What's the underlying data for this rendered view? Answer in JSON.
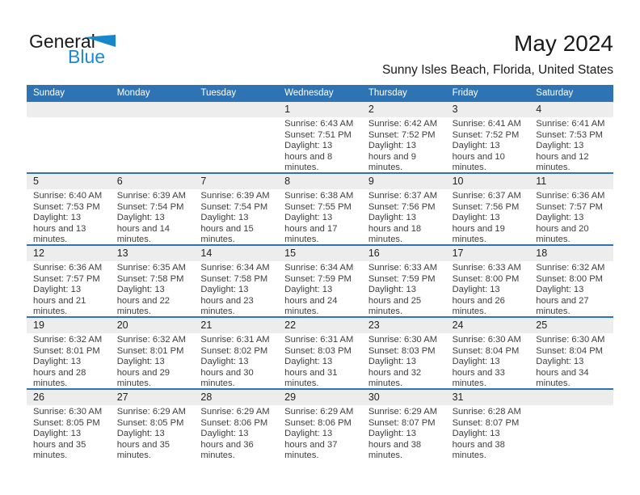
{
  "logo": {
    "text_black": "General",
    "text_blue": "Blue",
    "triangle_icon": "blue-triangle"
  },
  "title": "May 2024",
  "subtitle": "Sunny Isles Beach, Florida, United States",
  "colors": {
    "header_bg": "#2E74B5",
    "divider": "#2E74B5",
    "band": "#EDEDED",
    "logo_blue": "#1E88D2",
    "text_dark": "#1A1A1A",
    "cell_text": "#3E3E3E"
  },
  "calendar": {
    "weekdays": [
      "Sunday",
      "Monday",
      "Tuesday",
      "Wednesday",
      "Thursday",
      "Friday",
      "Saturday"
    ],
    "weeks": [
      [
        null,
        null,
        null,
        {
          "day": "1",
          "sunrise": "Sunrise: 6:43 AM",
          "sunset": "Sunset: 7:51 PM",
          "daylight": "Daylight: 13 hours and 8 minutes."
        },
        {
          "day": "2",
          "sunrise": "Sunrise: 6:42 AM",
          "sunset": "Sunset: 7:52 PM",
          "daylight": "Daylight: 13 hours and 9 minutes."
        },
        {
          "day": "3",
          "sunrise": "Sunrise: 6:41 AM",
          "sunset": "Sunset: 7:52 PM",
          "daylight": "Daylight: 13 hours and 10 minutes."
        },
        {
          "day": "4",
          "sunrise": "Sunrise: 6:41 AM",
          "sunset": "Sunset: 7:53 PM",
          "daylight": "Daylight: 13 hours and 12 minutes."
        }
      ],
      [
        {
          "day": "5",
          "sunrise": "Sunrise: 6:40 AM",
          "sunset": "Sunset: 7:53 PM",
          "daylight": "Daylight: 13 hours and 13 minutes."
        },
        {
          "day": "6",
          "sunrise": "Sunrise: 6:39 AM",
          "sunset": "Sunset: 7:54 PM",
          "daylight": "Daylight: 13 hours and 14 minutes."
        },
        {
          "day": "7",
          "sunrise": "Sunrise: 6:39 AM",
          "sunset": "Sunset: 7:54 PM",
          "daylight": "Daylight: 13 hours and 15 minutes."
        },
        {
          "day": "8",
          "sunrise": "Sunrise: 6:38 AM",
          "sunset": "Sunset: 7:55 PM",
          "daylight": "Daylight: 13 hours and 17 minutes."
        },
        {
          "day": "9",
          "sunrise": "Sunrise: 6:37 AM",
          "sunset": "Sunset: 7:56 PM",
          "daylight": "Daylight: 13 hours and 18 minutes."
        },
        {
          "day": "10",
          "sunrise": "Sunrise: 6:37 AM",
          "sunset": "Sunset: 7:56 PM",
          "daylight": "Daylight: 13 hours and 19 minutes."
        },
        {
          "day": "11",
          "sunrise": "Sunrise: 6:36 AM",
          "sunset": "Sunset: 7:57 PM",
          "daylight": "Daylight: 13 hours and 20 minutes."
        }
      ],
      [
        {
          "day": "12",
          "sunrise": "Sunrise: 6:36 AM",
          "sunset": "Sunset: 7:57 PM",
          "daylight": "Daylight: 13 hours and 21 minutes."
        },
        {
          "day": "13",
          "sunrise": "Sunrise: 6:35 AM",
          "sunset": "Sunset: 7:58 PM",
          "daylight": "Daylight: 13 hours and 22 minutes."
        },
        {
          "day": "14",
          "sunrise": "Sunrise: 6:34 AM",
          "sunset": "Sunset: 7:58 PM",
          "daylight": "Daylight: 13 hours and 23 minutes."
        },
        {
          "day": "15",
          "sunrise": "Sunrise: 6:34 AM",
          "sunset": "Sunset: 7:59 PM",
          "daylight": "Daylight: 13 hours and 24 minutes."
        },
        {
          "day": "16",
          "sunrise": "Sunrise: 6:33 AM",
          "sunset": "Sunset: 7:59 PM",
          "daylight": "Daylight: 13 hours and 25 minutes."
        },
        {
          "day": "17",
          "sunrise": "Sunrise: 6:33 AM",
          "sunset": "Sunset: 8:00 PM",
          "daylight": "Daylight: 13 hours and 26 minutes."
        },
        {
          "day": "18",
          "sunrise": "Sunrise: 6:32 AM",
          "sunset": "Sunset: 8:00 PM",
          "daylight": "Daylight: 13 hours and 27 minutes."
        }
      ],
      [
        {
          "day": "19",
          "sunrise": "Sunrise: 6:32 AM",
          "sunset": "Sunset: 8:01 PM",
          "daylight": "Daylight: 13 hours and 28 minutes."
        },
        {
          "day": "20",
          "sunrise": "Sunrise: 6:32 AM",
          "sunset": "Sunset: 8:01 PM",
          "daylight": "Daylight: 13 hours and 29 minutes."
        },
        {
          "day": "21",
          "sunrise": "Sunrise: 6:31 AM",
          "sunset": "Sunset: 8:02 PM",
          "daylight": "Daylight: 13 hours and 30 minutes."
        },
        {
          "day": "22",
          "sunrise": "Sunrise: 6:31 AM",
          "sunset": "Sunset: 8:03 PM",
          "daylight": "Daylight: 13 hours and 31 minutes."
        },
        {
          "day": "23",
          "sunrise": "Sunrise: 6:30 AM",
          "sunset": "Sunset: 8:03 PM",
          "daylight": "Daylight: 13 hours and 32 minutes."
        },
        {
          "day": "24",
          "sunrise": "Sunrise: 6:30 AM",
          "sunset": "Sunset: 8:04 PM",
          "daylight": "Daylight: 13 hours and 33 minutes."
        },
        {
          "day": "25",
          "sunrise": "Sunrise: 6:30 AM",
          "sunset": "Sunset: 8:04 PM",
          "daylight": "Daylight: 13 hours and 34 minutes."
        }
      ],
      [
        {
          "day": "26",
          "sunrise": "Sunrise: 6:30 AM",
          "sunset": "Sunset: 8:05 PM",
          "daylight": "Daylight: 13 hours and 35 minutes."
        },
        {
          "day": "27",
          "sunrise": "Sunrise: 6:29 AM",
          "sunset": "Sunset: 8:05 PM",
          "daylight": "Daylight: 13 hours and 35 minutes."
        },
        {
          "day": "28",
          "sunrise": "Sunrise: 6:29 AM",
          "sunset": "Sunset: 8:06 PM",
          "daylight": "Daylight: 13 hours and 36 minutes."
        },
        {
          "day": "29",
          "sunrise": "Sunrise: 6:29 AM",
          "sunset": "Sunset: 8:06 PM",
          "daylight": "Daylight: 13 hours and 37 minutes."
        },
        {
          "day": "30",
          "sunrise": "Sunrise: 6:29 AM",
          "sunset": "Sunset: 8:07 PM",
          "daylight": "Daylight: 13 hours and 38 minutes."
        },
        {
          "day": "31",
          "sunrise": "Sunrise: 6:28 AM",
          "sunset": "Sunset: 8:07 PM",
          "daylight": "Daylight: 13 hours and 38 minutes."
        },
        null
      ]
    ]
  }
}
